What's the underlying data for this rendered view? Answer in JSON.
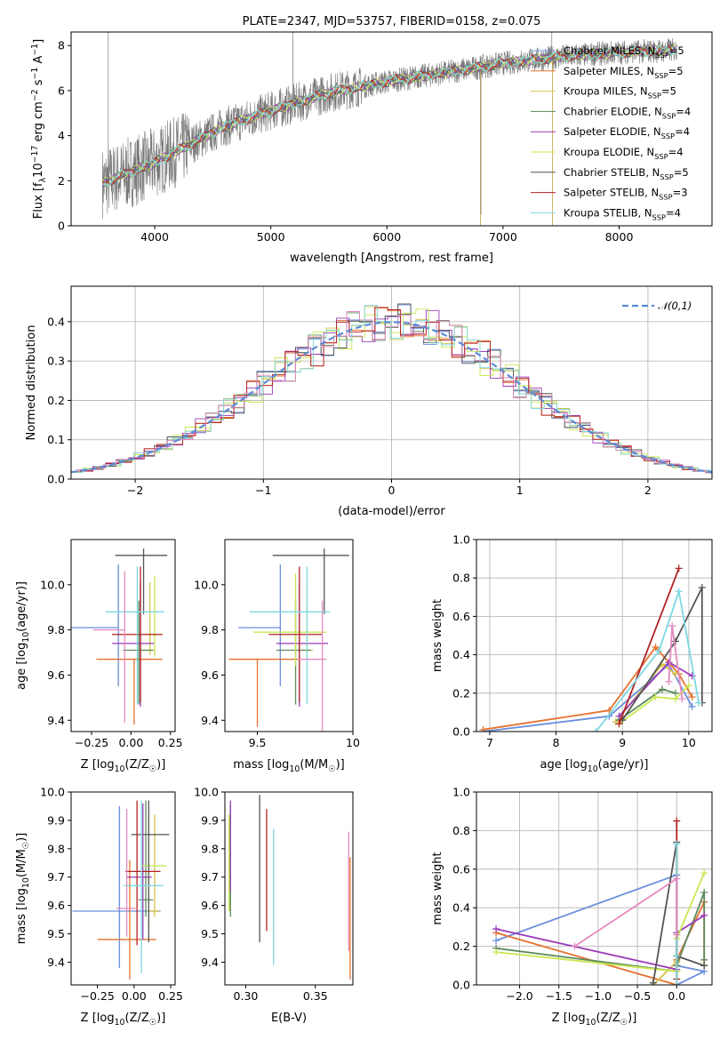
{
  "colors": [
    "#6a8fdc",
    "#e5722e",
    "#d6c24a",
    "#5a8a5a",
    "#9a3bb8",
    "#c8e850",
    "#555555",
    "#b22222",
    "#7dd8e0",
    "#e48ac0"
  ],
  "chart_data": [
    {
      "id": "spectrum",
      "type": "line",
      "title": "PLATE=2347, MJD=53757, FIBERID=0158, z=0.075",
      "xlabel": "wavelength [Angstrom, rest frame]",
      "ylabel": "Flux [f_λ 10^-17 erg cm^-2 s^-1 A^-1]",
      "xlim": [
        3280,
        8800
      ],
      "ylim": [
        0,
        8.6
      ],
      "xticks": [
        4000,
        5000,
        6000,
        7000,
        8000
      ],
      "yticks": [
        0,
        2,
        4,
        6,
        8
      ],
      "legend": "top-right",
      "series": [
        {
          "name": "Chabrier MILES, N_SSP=5"
        },
        {
          "name": "Salpeter MILES, N_SSP=5"
        },
        {
          "name": "Kroupa MILES, N_SSP=5"
        },
        {
          "name": "Chabrier ELODIE, N_SSP=4"
        },
        {
          "name": "Salpeter ELODIE, N_SSP=4"
        },
        {
          "name": "Kroupa ELODIE, N_SSP=4"
        },
        {
          "name": "Chabrier STELIB, N_SSP=5"
        },
        {
          "name": "Salpeter STELIB, N_SSP=3"
        },
        {
          "name": "Kroupa STELIB, N_SSP=4"
        }
      ],
      "continuum": {
        "x": [
          3550,
          3800,
          4000,
          4300,
          4600,
          5000,
          5500,
          6000,
          6500,
          7000,
          7500,
          8000,
          8500
        ],
        "y": [
          1.9,
          2.4,
          2.8,
          3.6,
          4.4,
          5.1,
          5.9,
          6.4,
          6.8,
          7.2,
          7.5,
          7.7,
          7.8
        ]
      }
    },
    {
      "id": "residuals",
      "type": "line",
      "xlabel": "(data-model)/error",
      "ylabel": "Normed distribution",
      "xlim": [
        -2.5,
        2.5
      ],
      "ylim": [
        0,
        0.49
      ],
      "xticks": [
        -2,
        -1,
        0,
        1,
        2
      ],
      "yticks": [
        0.0,
        0.1,
        0.2,
        0.3,
        0.4
      ],
      "legend_label": "𝒩(0,1)",
      "grid": true
    },
    {
      "id": "age-vs-z",
      "type": "scatter",
      "xlabel": "Z [log10(Z/Z☉)]",
      "ylabel": "age  [log10(age/yr)]",
      "xlim": [
        -0.38,
        0.28
      ],
      "ylim": [
        9.35,
        10.2
      ],
      "xticks": [
        -0.25,
        0.0,
        0.25
      ],
      "xticklabels": [
        "−0.25",
        "0.00",
        "0.25"
      ],
      "yticks": [
        9.4,
        9.6,
        9.8,
        10.0
      ],
      "points": [
        {
          "x": -0.08,
          "y": 9.81,
          "xerr": [
            0.5,
            0.0
          ],
          "yerr": [
            0.26,
            0.28
          ]
        },
        {
          "x": 0.02,
          "y": 9.67,
          "xerr": [
            0.24,
            0.18
          ],
          "yerr": [
            0.29,
            0.0
          ]
        },
        {
          "x": 0.12,
          "y": 9.71,
          "xerr": [
            0.05,
            0.03
          ],
          "yerr": [
            0.02,
            0.3
          ]
        },
        {
          "x": 0.05,
          "y": 9.71,
          "xerr": [
            0.1,
            0.09
          ],
          "yerr": [
            0.24,
            0.22
          ]
        },
        {
          "x": 0.06,
          "y": 9.74,
          "xerr": [
            0.18,
            0.09
          ],
          "yerr": [
            0.28,
            0.27
          ]
        },
        {
          "x": 0.15,
          "y": 9.78,
          "xerr": [
            0.05,
            0.05
          ],
          "yerr": [
            0.1,
            0.26
          ]
        },
        {
          "x": 0.08,
          "y": 10.13,
          "xerr": [
            0.18,
            0.15
          ],
          "yerr": [
            0.26,
            0.03
          ]
        },
        {
          "x": 0.06,
          "y": 9.78,
          "xerr": [
            0.18,
            0.14
          ],
          "yerr": [
            0.3,
            0.3
          ]
        },
        {
          "x": 0.04,
          "y": 9.88,
          "xerr": [
            0.2,
            0.17
          ],
          "yerr": [
            0.41,
            0.2
          ]
        },
        {
          "x": -0.04,
          "y": 9.8,
          "xerr": [
            0.2,
            0.0
          ],
          "yerr": [
            0.41,
            0.26
          ]
        }
      ]
    },
    {
      "id": "age-vs-mass",
      "type": "scatter",
      "xlabel": "mass [log10(M/M☉)]",
      "ylabel": "",
      "xlim": [
        9.33,
        10.0
      ],
      "ylim": [
        9.35,
        10.2
      ],
      "xticks": [
        9.5,
        10.0
      ],
      "yticks": [
        9.4,
        9.6,
        9.8,
        10.0
      ],
      "points": [
        {
          "x": 9.62,
          "y": 9.81,
          "xerr": [
            0.22,
            0.0
          ],
          "yerr": [
            0.26,
            0.28
          ]
        },
        {
          "x": 9.5,
          "y": 9.67,
          "xerr": [
            0.15,
            0.22
          ],
          "yerr": [
            0.3,
            0.0
          ]
        },
        {
          "x": 9.76,
          "y": 9.71,
          "xerr": [
            0.05,
            0.03
          ],
          "yerr": [
            0.02,
            0.3
          ]
        },
        {
          "x": 9.7,
          "y": 9.71,
          "xerr": [
            0.1,
            0.08
          ],
          "yerr": [
            0.24,
            0.22
          ]
        },
        {
          "x": 9.72,
          "y": 9.74,
          "xerr": [
            0.12,
            0.15
          ],
          "yerr": [
            0.28,
            0.27
          ]
        },
        {
          "x": 9.7,
          "y": 9.79,
          "xerr": [
            0.22,
            0.16
          ],
          "yerr": [
            0.15,
            0.26
          ]
        },
        {
          "x": 9.85,
          "y": 10.13,
          "xerr": [
            0.27,
            0.13
          ],
          "yerr": [
            0.26,
            0.03
          ]
        },
        {
          "x": 9.72,
          "y": 9.78,
          "xerr": [
            0.16,
            0.12
          ],
          "yerr": [
            0.3,
            0.3
          ]
        },
        {
          "x": 9.76,
          "y": 9.88,
          "xerr": [
            0.3,
            0.12
          ],
          "yerr": [
            0.41,
            0.2
          ]
        },
        {
          "x": 9.84,
          "y": 9.67,
          "xerr": [
            0.13,
            0.02
          ],
          "yerr": [
            0.41,
            0.26
          ]
        }
      ]
    },
    {
      "id": "weight-vs-age",
      "type": "line",
      "xlabel": "age  [log10(age/yr)]",
      "ylabel": "mass weight",
      "xlim": [
        6.8,
        10.35
      ],
      "ylim": [
        0,
        1.0
      ],
      "xticks": [
        7,
        8,
        9,
        10
      ],
      "yticks": [
        0.0,
        0.2,
        0.4,
        0.6,
        0.8,
        1.0
      ],
      "grid": true,
      "series": [
        {
          "x": [
            6.9,
            8.8,
            9.7,
            10.05
          ],
          "y": [
            0.0,
            0.08,
            0.35,
            0.13
          ]
        },
        {
          "x": [
            6.9,
            8.8,
            9.5,
            9.85,
            10.05
          ],
          "y": [
            0.01,
            0.11,
            0.44,
            0.3,
            0.18
          ]
        },
        {
          "x": [
            8.9,
            9.6,
            9.8
          ],
          "y": [
            0.05,
            0.35,
            0.3
          ]
        },
        {
          "x": [
            8.95,
            9.6,
            9.8
          ],
          "y": [
            0.06,
            0.22,
            0.2
          ]
        },
        {
          "x": [
            8.95,
            9.7,
            10.05
          ],
          "y": [
            0.08,
            0.36,
            0.29
          ]
        },
        {
          "x": [
            8.95,
            9.5,
            9.8,
            10.0
          ],
          "y": [
            0.04,
            0.18,
            0.17,
            0.24
          ]
        },
        {
          "x": [
            9.0,
            9.8,
            10.2,
            10.2
          ],
          "y": [
            0.06,
            0.47,
            0.75,
            0.15
          ]
        },
        {
          "x": [
            8.95,
            9.85
          ],
          "y": [
            0.04,
            0.85
          ]
        },
        {
          "x": [
            8.6,
            9.55,
            9.85,
            10.15
          ],
          "y": [
            0.0,
            0.42,
            0.73,
            0.15
          ]
        },
        {
          "x": [
            9.7,
            9.75,
            9.9
          ],
          "y": [
            0.26,
            0.55,
            0.17
          ]
        }
      ]
    },
    {
      "id": "mass-vs-z",
      "type": "scatter",
      "xlabel": "Z [log10(Z/Z☉)]",
      "ylabel": "mass [log10(M/M☉)]",
      "xlim": [
        -0.43,
        0.28
      ],
      "ylim": [
        9.32,
        10.0
      ],
      "xticks": [
        -0.25,
        0.0,
        0.25
      ],
      "xticklabels": [
        "−0.25",
        "0.00",
        "0.25"
      ],
      "yticks": [
        9.4,
        9.5,
        9.6,
        9.7,
        9.8,
        9.9,
        10.0
      ],
      "points": [
        {
          "x": -0.1,
          "y": 9.58,
          "xerr": [
            0.32,
            0.28
          ],
          "yerr": [
            0.2,
            0.37
          ]
        },
        {
          "x": -0.03,
          "y": 9.48,
          "xerr": [
            0.22,
            0.18
          ],
          "yerr": [
            0.14,
            0.28
          ]
        },
        {
          "x": 0.14,
          "y": 9.58,
          "xerr": [
            0.05,
            0.03
          ],
          "yerr": [
            0.02,
            0.34
          ]
        },
        {
          "x": 0.08,
          "y": 9.62,
          "xerr": [
            0.05,
            0.05
          ],
          "yerr": [
            0.06,
            0.35
          ]
        },
        {
          "x": 0.06,
          "y": 9.7,
          "xerr": [
            0.11,
            0.06
          ],
          "yerr": [
            0.22,
            0.26
          ]
        },
        {
          "x": 0.1,
          "y": 9.74,
          "xerr": [
            0.05,
            0.12
          ],
          "yerr": [
            0.22,
            0.18
          ]
        },
        {
          "x": 0.1,
          "y": 9.85,
          "xerr": [
            0.12,
            0.14
          ],
          "yerr": [
            0.38,
            0.12
          ]
        },
        {
          "x": 0.02,
          "y": 9.72,
          "xerr": [
            0.08,
            0.16
          ],
          "yerr": [
            0.26,
            0.25
          ]
        },
        {
          "x": 0.05,
          "y": 9.67,
          "xerr": [
            0.12,
            0.15
          ],
          "yerr": [
            0.31,
            0.3
          ]
        },
        {
          "x": -0.05,
          "y": 9.59,
          "xerr": [
            0.07,
            0.06
          ],
          "yerr": [
            0.1,
            0.35
          ]
        }
      ]
    },
    {
      "id": "mass-vs-ebv",
      "type": "scatter",
      "xlabel": "E(B-V)",
      "ylabel": "",
      "xlim": [
        0.285,
        0.377
      ],
      "ylim": [
        9.32,
        10.0
      ],
      "xticks": [
        0.3,
        0.35
      ],
      "xticklabels": [
        "0.30",
        "0.35"
      ],
      "yticks": [
        9.4,
        9.5,
        9.6,
        9.7,
        9.8,
        9.9,
        10.0
      ],
      "points": [
        {
          "x": 0.289,
          "y": 9.78,
          "yerr": [
            0.18,
            0.18
          ]
        },
        {
          "x": 0.375,
          "y": 9.55,
          "yerr": [
            0.21,
            0.22
          ]
        },
        {
          "x": 0.288,
          "y": 9.75,
          "yerr": [
            0.17,
            0.17
          ]
        },
        {
          "x": 0.289,
          "y": 9.75,
          "yerr": [
            0.19,
            0.19
          ]
        },
        {
          "x": 0.289,
          "y": 9.8,
          "yerr": [
            0.15,
            0.17
          ]
        },
        {
          "x": 0.288,
          "y": 9.75,
          "yerr": [
            0.17,
            0.17
          ]
        },
        {
          "x": 0.31,
          "y": 9.73,
          "yerr": [
            0.26,
            0.26
          ]
        },
        {
          "x": 0.315,
          "y": 9.72,
          "yerr": [
            0.21,
            0.22
          ]
        },
        {
          "x": 0.32,
          "y": 9.63,
          "yerr": [
            0.24,
            0.24
          ]
        },
        {
          "x": 0.374,
          "y": 9.64,
          "yerr": [
            0.2,
            0.22
          ]
        }
      ]
    },
    {
      "id": "weight-vs-z",
      "type": "line",
      "xlabel": "Z [log10(Z/Z☉)]",
      "ylabel": "mass weight",
      "xlim": [
        -2.55,
        0.45
      ],
      "ylim": [
        0,
        1.0
      ],
      "xticks": [
        -2.0,
        -1.5,
        -1.0,
        -0.5,
        0.0
      ],
      "xticklabels": [
        "−2.0",
        "−1.5",
        "−1.0",
        "−0.5",
        "0.0"
      ],
      "yticks": [
        0.0,
        0.2,
        0.4,
        0.6,
        0.8,
        1.0
      ],
      "grid": true,
      "series": [
        {
          "x": [
            -2.3,
            0.0,
            0.0,
            0.35,
            0.0
          ],
          "y": [
            0.23,
            0.57,
            0.0,
            0.07,
            0.1
          ]
        },
        {
          "x": [
            -2.3,
            0.0,
            0.0,
            0.35,
            0.35
          ],
          "y": [
            0.27,
            0.0,
            0.13,
            0.43,
            0.1
          ]
        },
        {
          "x": [
            -0.3,
            0.0,
            0.0
          ],
          "y": [
            0.0,
            0.12,
            0.15
          ]
        },
        {
          "x": [
            -2.3,
            0.0,
            0.0,
            0.35,
            0.35
          ],
          "y": [
            0.19,
            0.07,
            0.1,
            0.48,
            0.13
          ]
        },
        {
          "x": [
            -2.3,
            0.0,
            0.0,
            0.35
          ],
          "y": [
            0.29,
            0.08,
            0.27,
            0.36
          ]
        },
        {
          "x": [
            -2.3,
            0.0,
            0.0,
            0.35
          ],
          "y": [
            0.17,
            0.07,
            0.24,
            0.58
          ]
        },
        {
          "x": [
            -0.3,
            0.0,
            0.0,
            0.35
          ],
          "y": [
            0.01,
            0.74,
            0.15,
            0.1
          ]
        },
        {
          "x": [
            0.0,
            0.0
          ],
          "y": [
            0.03,
            0.85
          ]
        },
        {
          "x": [
            0.0,
            0.0,
            0.0
          ],
          "y": [
            0.0,
            0.73,
            0.15
          ]
        },
        {
          "x": [
            -1.3,
            0.0,
            0.0
          ],
          "y": [
            0.2,
            0.55,
            0.26
          ]
        }
      ]
    }
  ]
}
